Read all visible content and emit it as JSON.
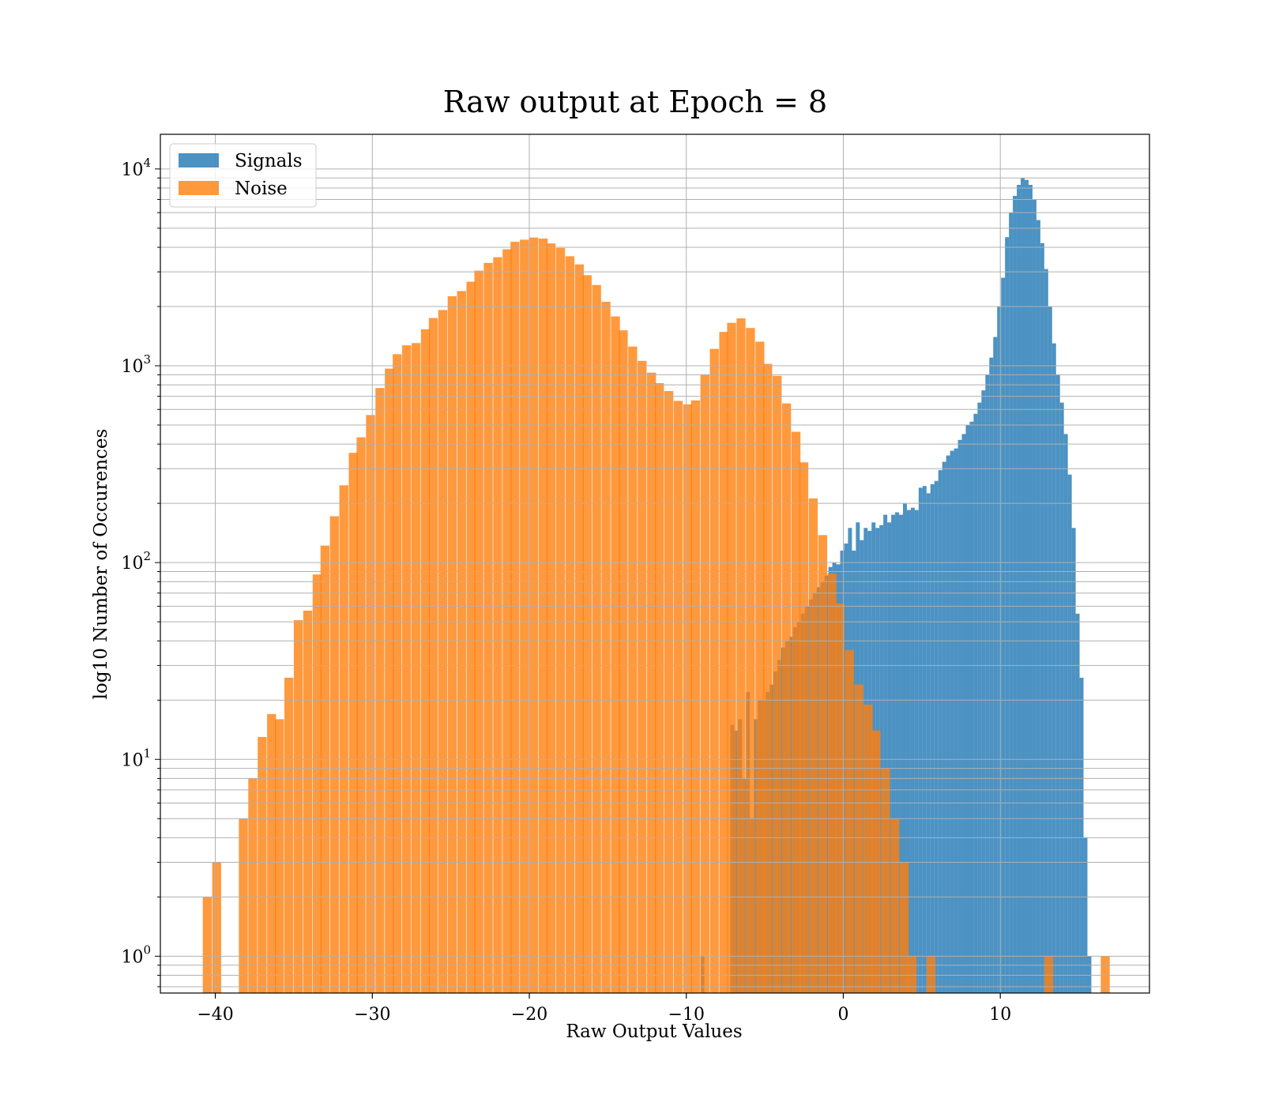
{
  "chart_data": {
    "type": "bar",
    "title": "Raw output at Epoch = 8",
    "xlabel": "Raw Output Values",
    "ylabel": "log10 Number of Occurences",
    "y_scale": "log",
    "xlim": [
      -43.5,
      19.5
    ],
    "ylim": [
      0.65,
      15000
    ],
    "x_ticks": [
      -40,
      -30,
      -20,
      -10,
      0,
      10
    ],
    "y_ticks": [
      1,
      10,
      100,
      1000,
      10000
    ],
    "grid": true,
    "legend_position": "top-left",
    "series": [
      {
        "name": "Signals",
        "color": "#1f77b4",
        "alpha": 0.8,
        "bin_width": 0.25,
        "bins": [
          [
            -9.1,
            1
          ],
          [
            -7.2,
            15
          ],
          [
            -6.95,
            14
          ],
          [
            -6.7,
            16
          ],
          [
            -6.45,
            8
          ],
          [
            -6.2,
            22
          ],
          [
            -5.95,
            5
          ],
          [
            -5.7,
            16
          ],
          [
            -5.45,
            20
          ],
          [
            -5.2,
            20
          ],
          [
            -4.95,
            22
          ],
          [
            -4.7,
            24
          ],
          [
            -4.45,
            28
          ],
          [
            -4.2,
            32
          ],
          [
            -3.95,
            37
          ],
          [
            -3.7,
            40
          ],
          [
            -3.45,
            42
          ],
          [
            -3.2,
            47
          ],
          [
            -2.95,
            50
          ],
          [
            -2.7,
            55
          ],
          [
            -2.45,
            60
          ],
          [
            -2.2,
            65
          ],
          [
            -1.95,
            70
          ],
          [
            -1.7,
            75
          ],
          [
            -1.45,
            80
          ],
          [
            -1.2,
            86
          ],
          [
            -0.95,
            95
          ],
          [
            -0.7,
            100
          ],
          [
            -0.45,
            98
          ],
          [
            -0.2,
            115
          ],
          [
            0.05,
            125
          ],
          [
            0.3,
            150
          ],
          [
            0.55,
            115
          ],
          [
            0.8,
            160
          ],
          [
            1.05,
            130
          ],
          [
            1.3,
            150
          ],
          [
            1.55,
            145
          ],
          [
            1.8,
            160
          ],
          [
            2.05,
            150
          ],
          [
            2.3,
            155
          ],
          [
            2.55,
            175
          ],
          [
            2.8,
            160
          ],
          [
            3.05,
            175
          ],
          [
            3.3,
            180
          ],
          [
            3.55,
            175
          ],
          [
            3.8,
            200
          ],
          [
            4.05,
            185
          ],
          [
            4.3,
            190
          ],
          [
            4.55,
            185
          ],
          [
            4.8,
            240
          ],
          [
            5.05,
            245
          ],
          [
            5.3,
            225
          ],
          [
            5.55,
            250
          ],
          [
            5.8,
            260
          ],
          [
            6.05,
            295
          ],
          [
            6.3,
            325
          ],
          [
            6.55,
            350
          ],
          [
            6.8,
            370
          ],
          [
            7.05,
            380
          ],
          [
            7.3,
            420
          ],
          [
            7.55,
            450
          ],
          [
            7.8,
            500
          ],
          [
            8.05,
            520
          ],
          [
            8.3,
            570
          ],
          [
            8.55,
            650
          ],
          [
            8.8,
            750
          ],
          [
            9.05,
            900
          ],
          [
            9.3,
            1100
          ],
          [
            9.55,
            1400
          ],
          [
            9.8,
            2000
          ],
          [
            10.05,
            2800
          ],
          [
            10.3,
            4500
          ],
          [
            10.55,
            6000
          ],
          [
            10.8,
            7300
          ],
          [
            11.05,
            8300
          ],
          [
            11.3,
            9000
          ],
          [
            11.55,
            8800
          ],
          [
            11.8,
            8300
          ],
          [
            12.05,
            7000
          ],
          [
            12.3,
            5500
          ],
          [
            12.55,
            4200
          ],
          [
            12.8,
            3100
          ],
          [
            13.05,
            2000
          ],
          [
            13.3,
            1300
          ],
          [
            13.55,
            900
          ],
          [
            13.8,
            650
          ],
          [
            14.05,
            450
          ],
          [
            14.3,
            280
          ],
          [
            14.55,
            150
          ],
          [
            14.8,
            55
          ],
          [
            15.05,
            26
          ],
          [
            15.3,
            4
          ],
          [
            15.55,
            1
          ]
        ]
      },
      {
        "name": "Noise",
        "color": "#ff7f0e",
        "alpha": 0.8,
        "bin_width": 0.57,
        "bins": [
          [
            -40.8,
            2
          ],
          [
            -40.2,
            3
          ],
          [
            -38.5,
            5
          ],
          [
            -37.9,
            8
          ],
          [
            -37.3,
            13
          ],
          [
            -36.7,
            17
          ],
          [
            -36.2,
            16
          ],
          [
            -35.6,
            26
          ],
          [
            -35.0,
            51
          ],
          [
            -34.4,
            57
          ],
          [
            -33.8,
            87
          ],
          [
            -33.3,
            122
          ],
          [
            -32.7,
            172
          ],
          [
            -32.1,
            247
          ],
          [
            -31.5,
            361
          ],
          [
            -31.0,
            433
          ],
          [
            -30.4,
            562
          ],
          [
            -29.8,
            771
          ],
          [
            -29.2,
            967
          ],
          [
            -28.7,
            1145
          ],
          [
            -28.1,
            1270
          ],
          [
            -27.5,
            1304
          ],
          [
            -26.9,
            1533
          ],
          [
            -26.4,
            1749
          ],
          [
            -25.8,
            1920
          ],
          [
            -25.2,
            2255
          ],
          [
            -24.6,
            2398
          ],
          [
            -24.0,
            2674
          ],
          [
            -23.5,
            3044
          ],
          [
            -22.9,
            3332
          ],
          [
            -22.3,
            3562
          ],
          [
            -21.7,
            3908
          ],
          [
            -21.2,
            4263
          ],
          [
            -20.6,
            4372
          ],
          [
            -20.0,
            4483
          ],
          [
            -19.4,
            4427
          ],
          [
            -18.9,
            4186
          ],
          [
            -18.3,
            3967
          ],
          [
            -17.7,
            3601
          ],
          [
            -17.1,
            3275
          ],
          [
            -16.6,
            2886
          ],
          [
            -16.0,
            2573
          ],
          [
            -15.4,
            2114
          ],
          [
            -14.8,
            1781
          ],
          [
            -14.3,
            1514
          ],
          [
            -13.7,
            1252
          ],
          [
            -13.1,
            1059
          ],
          [
            -12.5,
            923
          ],
          [
            -12.0,
            816
          ],
          [
            -11.4,
            744
          ],
          [
            -10.8,
            663
          ],
          [
            -10.2,
            637
          ],
          [
            -9.7,
            667
          ],
          [
            -9.1,
            904
          ],
          [
            -8.5,
            1219
          ],
          [
            -7.9,
            1486
          ],
          [
            -7.4,
            1653
          ],
          [
            -6.8,
            1742
          ],
          [
            -6.2,
            1556
          ],
          [
            -5.6,
            1326
          ],
          [
            -5.1,
            1022
          ],
          [
            -4.5,
            889
          ],
          [
            -3.9,
            644
          ],
          [
            -3.3,
            462
          ],
          [
            -2.8,
            323
          ],
          [
            -2.2,
            212
          ],
          [
            -1.6,
            138
          ],
          [
            -1.0,
            88
          ],
          [
            -0.5,
            62
          ],
          [
            0.1,
            36
          ],
          [
            0.7,
            24
          ],
          [
            1.3,
            19
          ],
          [
            1.8,
            14
          ],
          [
            2.4,
            9
          ],
          [
            3.0,
            5
          ],
          [
            3.6,
            3
          ],
          [
            4.1,
            1
          ],
          [
            5.3,
            1
          ],
          [
            12.8,
            1
          ],
          [
            16.4,
            1
          ]
        ]
      }
    ]
  }
}
